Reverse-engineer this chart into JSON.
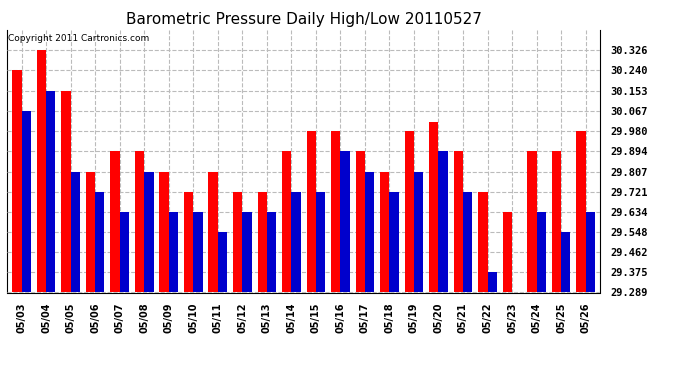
{
  "title": "Barometric Pressure Daily High/Low 20110527",
  "copyright": "Copyright 2011 Cartronics.com",
  "dates": [
    "05/03",
    "05/04",
    "05/05",
    "05/06",
    "05/07",
    "05/08",
    "05/09",
    "05/10",
    "05/11",
    "05/12",
    "05/13",
    "05/14",
    "05/15",
    "05/16",
    "05/17",
    "05/18",
    "05/19",
    "05/20",
    "05/21",
    "05/22",
    "05/23",
    "05/24",
    "05/25",
    "05/26"
  ],
  "highs": [
    30.24,
    30.326,
    30.153,
    29.807,
    29.894,
    29.894,
    29.807,
    29.721,
    29.807,
    29.721,
    29.721,
    29.894,
    29.98,
    29.98,
    29.894,
    29.807,
    29.98,
    30.02,
    29.894,
    29.721,
    29.634,
    29.894,
    29.894,
    29.98
  ],
  "lows": [
    30.067,
    30.153,
    29.807,
    29.721,
    29.634,
    29.807,
    29.634,
    29.634,
    29.548,
    29.634,
    29.634,
    29.721,
    29.721,
    29.894,
    29.807,
    29.721,
    29.807,
    29.894,
    29.721,
    29.375,
    29.289,
    29.634,
    29.548,
    29.634
  ],
  "bar_color_high": "#ff0000",
  "bar_color_low": "#0000cc",
  "background_color": "#ffffff",
  "grid_color": "#bbbbbb",
  "title_fontsize": 11,
  "ylim_min": 29.289,
  "ylim_max": 30.413,
  "yticks": [
    30.326,
    30.24,
    30.153,
    30.067,
    29.98,
    29.894,
    29.807,
    29.721,
    29.634,
    29.548,
    29.462,
    29.375,
    29.289
  ]
}
